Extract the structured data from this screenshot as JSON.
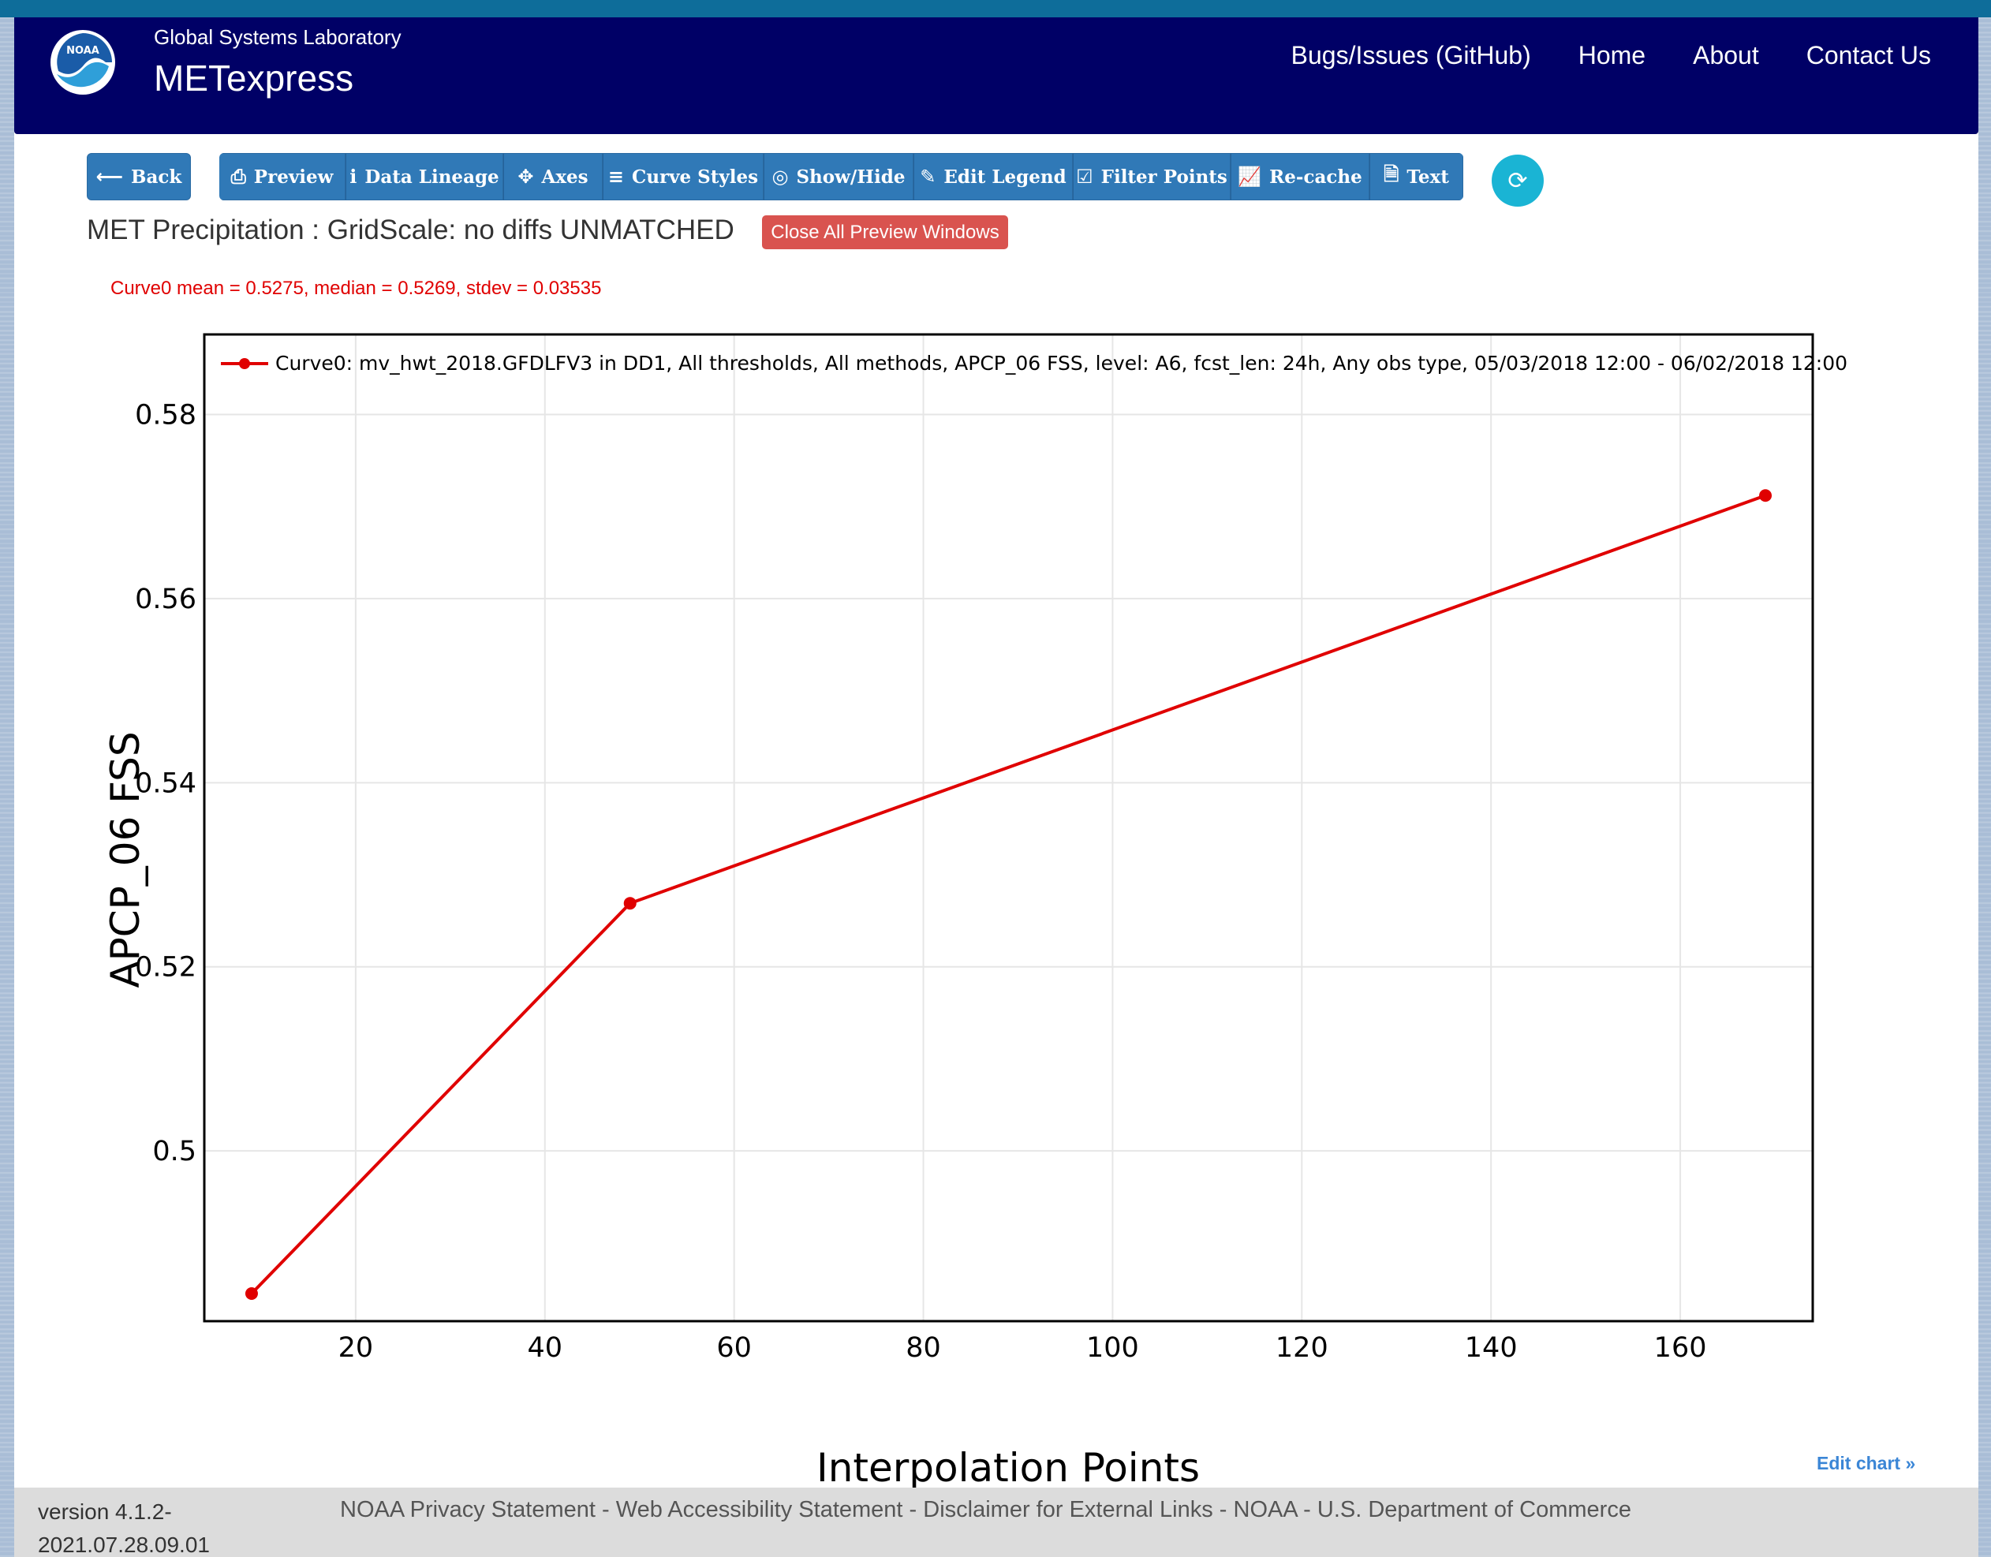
{
  "colors": {
    "header_bg": "#000066",
    "button_bg": "#3079b7",
    "refresh_bg": "#1ab4d4",
    "danger": "#d9534f",
    "curve": "#e00000"
  },
  "header": {
    "org": "Global Systems Laboratory",
    "app": "METexpress",
    "logo_text": "NOAA",
    "nav": [
      "Bugs/Issues (GitHub)",
      "Home",
      "About",
      "Contact Us"
    ]
  },
  "toolbar": {
    "back": {
      "label": "Back",
      "icon": "arrow-left-icon"
    },
    "buttons": [
      {
        "label": "Preview",
        "icon": "print-icon"
      },
      {
        "label": "Data Lineage",
        "icon": "info-icon"
      },
      {
        "label": "Axes",
        "icon": "move-icon"
      },
      {
        "label": "Curve Styles",
        "icon": "list-icon"
      },
      {
        "label": "Show/Hide",
        "icon": "eye-slash-icon"
      },
      {
        "label": "Edit Legend",
        "icon": "pencil-icon"
      },
      {
        "label": "Filter Points",
        "icon": "checkbox-icon"
      },
      {
        "label": "Re-cache",
        "icon": "line-chart-icon"
      },
      {
        "label": "Text",
        "icon": "document-icon"
      }
    ],
    "refresh_icon": "refresh-icon"
  },
  "plot": {
    "title": "MET Precipitation : GridScale: no diffs UNMATCHED",
    "close_previews_label": "Close All Preview Windows",
    "stats": "Curve0 mean = 0.5275, median = 0.5269, stdev = 0.03535",
    "edit_chart": "Edit chart »"
  },
  "chart_data": {
    "type": "line",
    "xlabel": "Interpolation Points",
    "ylabel": "APCP_06 FSS",
    "xlim": [
      4,
      174
    ],
    "ylim": [
      0.4815,
      0.5887
    ],
    "x_ticks": [
      20,
      40,
      60,
      80,
      100,
      120,
      140,
      160
    ],
    "y_ticks": [
      0.5,
      0.52,
      0.54,
      0.56,
      0.58
    ],
    "y_tick_labels": [
      "0.5",
      "0.52",
      "0.54",
      "0.56",
      "0.58"
    ],
    "grid": true,
    "legend_position": "top-left",
    "series": [
      {
        "name": "Curve0: mv_hwt_2018.GFDLFV3 in DD1, All thresholds, All methods, APCP_06 FSS, level: A6, fcst_len: 24h, Any obs type, 05/03/2018 12:00 - 06/02/2018 12:00",
        "color": "#e00000",
        "x": [
          9,
          49,
          169
        ],
        "y": [
          0.4845,
          0.5269,
          0.5712
        ]
      }
    ]
  },
  "footer": {
    "version_line1": "version 4.1.2-",
    "version_line2": "2021.07.28.09.01",
    "links": [
      "NOAA Privacy Statement",
      "Web Accessibility Statement",
      "Disclaimer for External Links",
      "NOAA",
      "U.S. Department of Commerce"
    ],
    "separator": " - "
  }
}
